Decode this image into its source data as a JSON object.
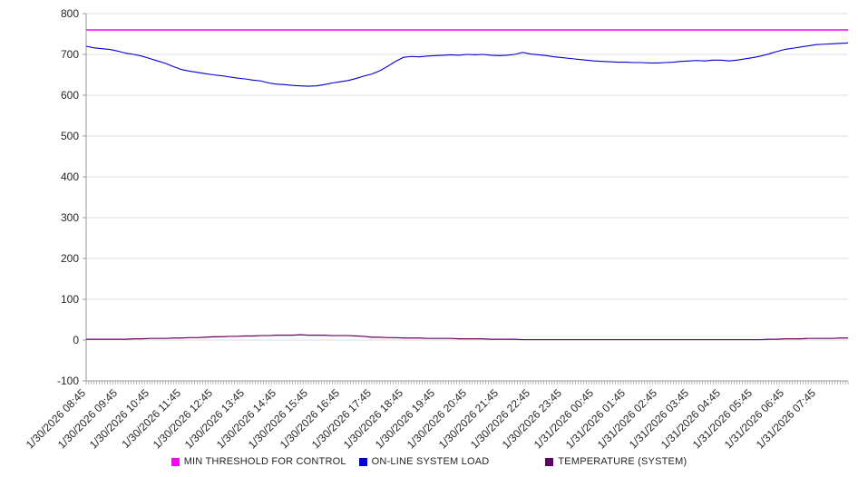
{
  "chart_data": {
    "type": "line",
    "title": "",
    "xlabel": "",
    "ylabel": "",
    "ylim": [
      -100,
      800
    ],
    "y_ticks": [
      -100,
      0,
      100,
      200,
      300,
      400,
      500,
      600,
      700,
      800
    ],
    "grid": "horizontal",
    "legend_position": "bottom",
    "x_range_hours": [
      0,
      24
    ],
    "samples_per_hour": 4,
    "minor_tick_minutes": 5,
    "x_labels": [
      "1/30/2026 08:45",
      "1/30/2026 09:45",
      "1/30/2026 10:45",
      "1/30/2026 11:45",
      "1/30/2026 12:45",
      "1/30/2026 13:45",
      "1/30/2026 14:45",
      "1/30/2026 15:45",
      "1/30/2026 16:45",
      "1/30/2026 17:45",
      "1/30/2026 18:45",
      "1/30/2026 19:45",
      "1/30/2026 20:45",
      "1/30/2026 21:45",
      "1/30/2026 22:45",
      "1/30/2026 23:45",
      "1/31/2026 00:45",
      "1/31/2026 01:45",
      "1/31/2026 02:45",
      "1/31/2026 03:45",
      "1/31/2026 04:45",
      "1/31/2026 05:45",
      "1/31/2026 06:45",
      "1/31/2026 07:45"
    ],
    "series": [
      {
        "name": "MIN THRESHOLD FOR CONTROL",
        "color": "#FF00FF",
        "width": 1.6,
        "value": 760
      },
      {
        "name": "ON-LINE SYSTEM LOAD",
        "color": "#0000CD",
        "width": 1.1,
        "values": [
          720,
          716,
          714,
          712,
          708,
          703,
          700,
          696,
          690,
          684,
          678,
          670,
          663,
          659,
          656,
          653,
          650,
          648,
          645,
          642,
          640,
          637,
          635,
          630,
          627,
          626,
          624,
          623,
          622,
          623,
          626,
          630,
          633,
          636,
          641,
          647,
          652,
          660,
          671,
          683,
          693,
          695,
          694,
          696,
          697,
          698,
          699,
          698,
          700,
          699,
          700,
          698,
          697,
          698,
          700,
          705,
          701,
          699,
          697,
          694,
          692,
          690,
          688,
          686,
          684,
          683,
          682,
          681,
          681,
          680,
          680,
          679,
          679,
          680,
          681,
          683,
          684,
          685,
          684,
          686,
          686,
          684,
          686,
          689,
          692,
          696,
          701,
          707,
          712,
          715,
          718,
          721,
          724,
          725,
          726,
          727,
          728
        ]
      },
      {
        "name": "TEMPERATURE (SYSTEM)",
        "color": "#660066",
        "width": 1.2,
        "values": [
          2,
          2,
          2,
          2,
          2,
          2,
          3,
          3,
          4,
          4,
          4,
          5,
          5,
          6,
          6,
          7,
          8,
          8,
          9,
          9,
          10,
          10,
          11,
          11,
          12,
          12,
          12,
          13,
          12,
          12,
          12,
          11,
          11,
          11,
          10,
          9,
          7,
          7,
          6,
          6,
          5,
          5,
          5,
          4,
          4,
          4,
          4,
          3,
          3,
          3,
          3,
          2,
          2,
          2,
          2,
          1,
          1,
          1,
          1,
          1,
          1,
          1,
          1,
          1,
          1,
          1,
          1,
          1,
          1,
          1,
          1,
          1,
          1,
          1,
          1,
          1,
          1,
          1,
          1,
          1,
          1,
          1,
          1,
          1,
          1,
          1,
          2,
          2,
          3,
          3,
          3,
          4,
          4,
          4,
          4,
          5,
          5
        ]
      }
    ]
  }
}
